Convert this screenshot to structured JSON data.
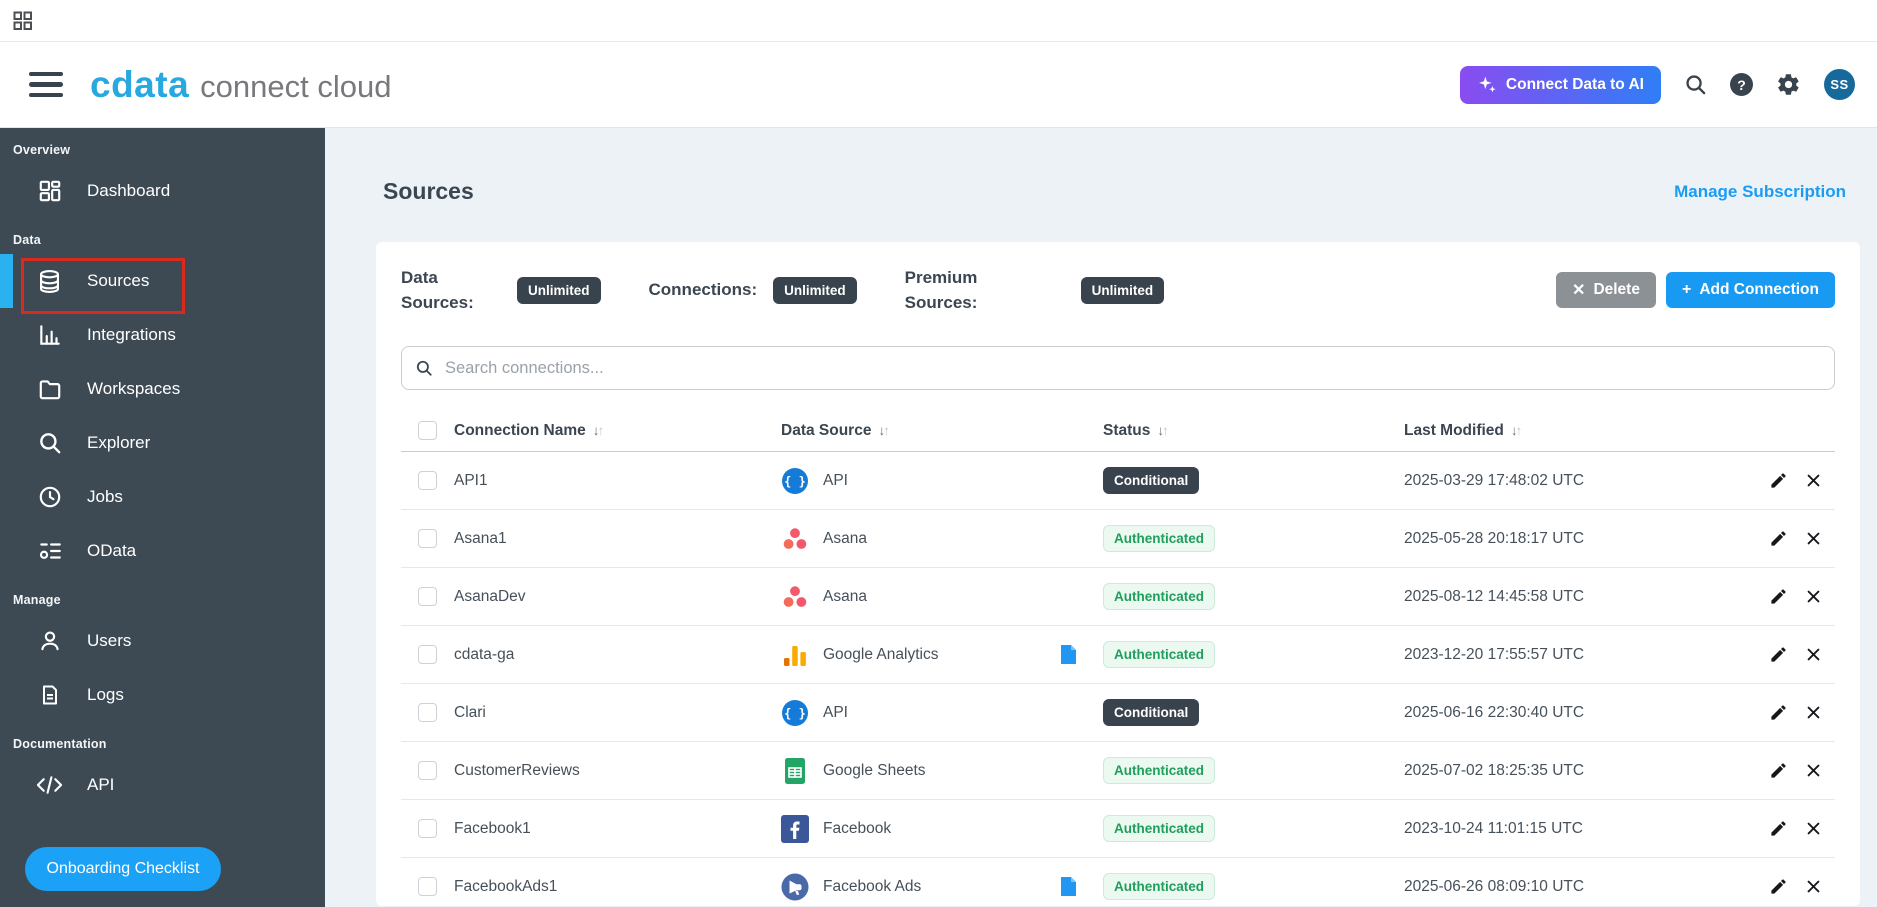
{
  "header": {
    "logo_primary": "cdata",
    "logo_secondary": "connect cloud",
    "connect_ai_label": "Connect Data to AI",
    "avatar_initials": "SS",
    "help_glyph": "?"
  },
  "sidebar": {
    "sections": [
      {
        "label": "Overview",
        "items": [
          {
            "icon": "dashboard-icon",
            "label": "Dashboard",
            "active": false
          }
        ]
      },
      {
        "label": "Data",
        "items": [
          {
            "icon": "database-icon",
            "label": "Sources",
            "active": true,
            "annotated": true
          },
          {
            "icon": "bar-chart-icon",
            "label": "Integrations",
            "active": false
          },
          {
            "icon": "folder-icon",
            "label": "Workspaces",
            "active": false
          },
          {
            "icon": "search-icon",
            "label": "Explorer",
            "active": false
          },
          {
            "icon": "clock-icon",
            "label": "Jobs",
            "active": false
          },
          {
            "icon": "odata-feed-icon",
            "label": "OData",
            "active": false
          }
        ]
      },
      {
        "label": "Manage",
        "items": [
          {
            "icon": "user-icon",
            "label": "Users",
            "active": false
          },
          {
            "icon": "document-icon",
            "label": "Logs",
            "active": false
          }
        ]
      },
      {
        "label": "Documentation",
        "items": [
          {
            "icon": "code-icon",
            "label": "API",
            "active": false
          }
        ]
      }
    ],
    "onboarding_label": "Onboarding Checklist"
  },
  "page": {
    "title": "Sources",
    "manage_subscription_label": "Manage Subscription",
    "stats": [
      {
        "label": "Data Sources:",
        "value": "Unlimited"
      },
      {
        "label": "Connections:",
        "value": "Unlimited"
      },
      {
        "label": "Premium Sources:",
        "value": "Unlimited"
      }
    ],
    "delete_label": "Delete",
    "add_connection_label": "Add Connection",
    "search_placeholder": "Search connections...",
    "table": {
      "columns": [
        "Connection Name",
        "Data Source",
        "Status",
        "Last Modified"
      ],
      "rows": [
        {
          "name": "API1",
          "source": "API",
          "source_icon": "api-icon",
          "has_doc": false,
          "status": "Conditional",
          "modified": "2025-03-29 17:48:02 UTC"
        },
        {
          "name": "Asana1",
          "source": "Asana",
          "source_icon": "asana-icon",
          "has_doc": false,
          "status": "Authenticated",
          "modified": "2025-05-28 20:18:17 UTC"
        },
        {
          "name": "AsanaDev",
          "source": "Asana",
          "source_icon": "asana-icon",
          "has_doc": false,
          "status": "Authenticated",
          "modified": "2025-08-12 14:45:58 UTC"
        },
        {
          "name": "cdata-ga",
          "source": "Google Analytics",
          "source_icon": "google-analytics-icon",
          "has_doc": true,
          "status": "Authenticated",
          "modified": "2023-12-20 17:55:57 UTC"
        },
        {
          "name": "Clari",
          "source": "API",
          "source_icon": "api-icon",
          "has_doc": false,
          "status": "Conditional",
          "modified": "2025-06-16 22:30:40 UTC"
        },
        {
          "name": "CustomerReviews",
          "source": "Google Sheets",
          "source_icon": "google-sheets-icon",
          "has_doc": false,
          "status": "Authenticated",
          "modified": "2025-07-02 18:25:35 UTC"
        },
        {
          "name": "Facebook1",
          "source": "Facebook",
          "source_icon": "facebook-icon",
          "has_doc": false,
          "status": "Authenticated",
          "modified": "2023-10-24 11:01:15 UTC"
        },
        {
          "name": "FacebookAds1",
          "source": "Facebook Ads",
          "source_icon": "facebook-ads-icon",
          "has_doc": true,
          "status": "Authenticated",
          "modified": "2025-06-26 08:09:10 UTC"
        }
      ]
    }
  },
  "colors": {
    "accent_blue": "#189af2",
    "sidebar_bg": "#3d4a54",
    "badge_dark": "#39434e",
    "authenticated_green": "#1f9e5c",
    "annotation_red": "#dc291e",
    "ai_gradient_start": "#8a4cf0",
    "ai_gradient_end": "#2f7ef6",
    "active_bar_blue": "#29b2ef"
  }
}
